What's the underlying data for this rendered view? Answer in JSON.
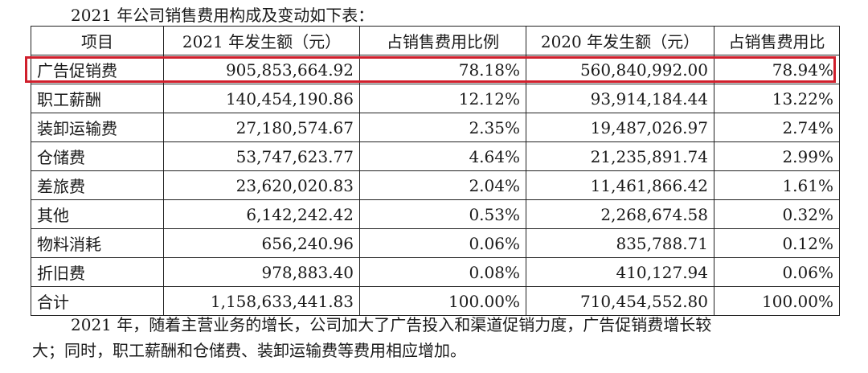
{
  "doc": {
    "intro": "2021 年公司销售费用构成及变动如下表：",
    "table": {
      "headers": [
        "项目",
        "2021 年发生额（元）",
        "占销售费用比例",
        "2020 年发生额（元）",
        "占销售费用比"
      ],
      "rows": [
        [
          "广告促销费",
          "905,853,664.92",
          "78.18%",
          "560,840,992.00",
          "78.94%"
        ],
        [
          "职工薪酬",
          "140,454,190.86",
          "12.12%",
          "93,914,184.44",
          "13.22%"
        ],
        [
          "装卸运输费",
          "27,180,574.67",
          "2.35%",
          "19,487,026.97",
          "2.74%"
        ],
        [
          "仓储费",
          "53,747,623.77",
          "4.64%",
          "21,235,891.74",
          "2.99%"
        ],
        [
          "差旅费",
          "23,620,020.83",
          "2.04%",
          "11,461,866.42",
          "1.61%"
        ],
        [
          "其他",
          "6,142,242.42",
          "0.53%",
          "2,268,674.58",
          "0.32%"
        ],
        [
          "物料消耗",
          "656,240.96",
          "0.06%",
          "835,788.71",
          "0.12%"
        ],
        [
          "折旧费",
          "978,883.40",
          "0.08%",
          "410,127.94",
          "0.06%"
        ],
        [
          "合计",
          "1,158,633,441.83",
          "100.00%",
          "710,454,552.80",
          "100.00%"
        ]
      ]
    },
    "paragraph_line1": "2021 年，随着主营业务的增长，公司加大了广告投入和渠道促销力度，广告促销费增长较",
    "paragraph_line2": "大；同时，职工薪酬和仓储费、装卸运输费等费用相应增加。",
    "highlight_color": "#d01f2c"
  }
}
